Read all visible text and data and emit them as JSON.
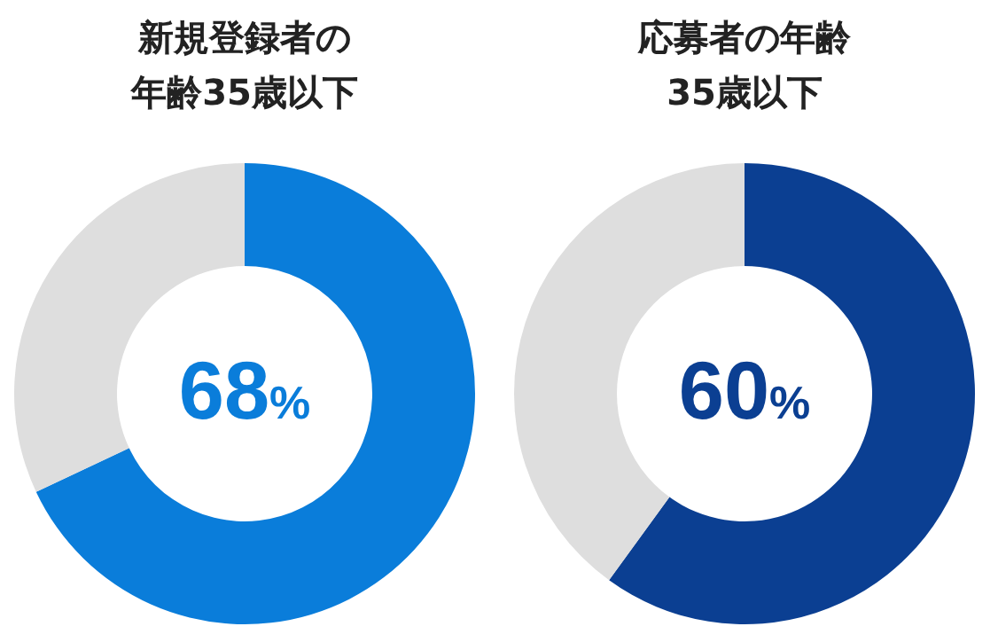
{
  "chart_data": [
    {
      "type": "donut",
      "title": "新規登録者の年齢35歳以下",
      "categories": [
        null,
        null
      ],
      "values": [
        68,
        32
      ],
      "colors": [
        "#0a7dda",
        "#dedede"
      ],
      "value_labels": [
        "68%",
        null
      ]
    },
    {
      "type": "donut",
      "title": "応募者の年齢35歳以下",
      "categories": [
        null,
        null
      ],
      "values": [
        60,
        40
      ],
      "colors": [
        "#0b3f92",
        "#dedede"
      ],
      "value_labels": [
        "60%",
        null
      ]
    }
  ]
}
